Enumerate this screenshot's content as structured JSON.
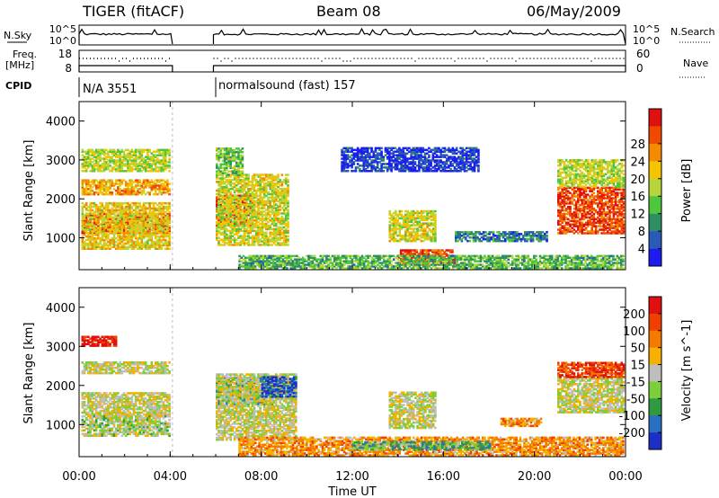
{
  "header": {
    "radar": "TIGER (fitACF)",
    "beam": "Beam 08",
    "date": "06/May/2009"
  },
  "status_panels": {
    "left_label_top": "N.Sky",
    "right_label_top": "N.Search",
    "left_label_freq_line1": "Freq.",
    "left_label_freq_line2": "[MHz]",
    "right_label_nave": "Nave",
    "cpid_label": "CPID",
    "noise_ticks_left": [
      "10^5",
      "10^0"
    ],
    "noise_ticks_right": [
      "10^5",
      "10^0"
    ],
    "freq_ticks_left": [
      "18",
      "8"
    ],
    "nave_ticks_right": [
      "60",
      "0"
    ],
    "cpid_segments": [
      {
        "label": "N/A 3551",
        "start_hour": 0,
        "end_hour": 4.1
      },
      {
        "label": "normalsound (fast) 157",
        "start_hour": 5.9,
        "end_hour": 24
      }
    ]
  },
  "chart_data": [
    {
      "type": "heatmap",
      "title": "",
      "xlabel": "",
      "ylabel": "Slant Range [km]",
      "xlim": [
        0,
        24
      ],
      "ylim": [
        180,
        4500
      ],
      "y_ticks": [
        1000,
        2000,
        3000,
        4000
      ],
      "data_gap_hours": [
        4.1,
        5.9
      ],
      "colorbar": {
        "label": "Power [dB]",
        "ticks": [
          "4",
          "8",
          "12",
          "16",
          "20",
          "24",
          "28"
        ],
        "colors": [
          "#1c1cf0",
          "#2a5ab8",
          "#2f8f64",
          "#4fc63c",
          "#b8d63a",
          "#f5c400",
          "#f58a00",
          "#f04a00",
          "#e01010"
        ]
      },
      "echo_regions": [
        {
          "x0": 0.1,
          "x1": 4.0,
          "y0": 1100,
          "y1": 1600,
          "level": 0.95
        },
        {
          "x0": 0.1,
          "x1": 4.0,
          "y0": 700,
          "y1": 1900,
          "level": 0.6
        },
        {
          "x0": 0.1,
          "x1": 4.0,
          "y0": 2100,
          "y1": 2500,
          "level": 0.7
        },
        {
          "x0": 0.1,
          "x1": 4.0,
          "y0": 2700,
          "y1": 3250,
          "level": 0.5
        },
        {
          "x0": 6.0,
          "x1": 7.6,
          "y0": 1300,
          "y1": 2100,
          "level": 0.95
        },
        {
          "x0": 6.0,
          "x1": 9.2,
          "y0": 800,
          "y1": 2600,
          "level": 0.55
        },
        {
          "x0": 6.0,
          "x1": 7.2,
          "y0": 2600,
          "y1": 3300,
          "level": 0.4
        },
        {
          "x0": 13.6,
          "x1": 15.6,
          "y0": 900,
          "y1": 1700,
          "level": 0.55
        },
        {
          "x0": 14.0,
          "x1": 16.5,
          "y0": 300,
          "y1": 700,
          "level": 0.9
        },
        {
          "x0": 7.0,
          "x1": 23.9,
          "y0": 200,
          "y1": 550,
          "level": 0.35
        },
        {
          "x0": 16.5,
          "x1": 20.5,
          "y0": 900,
          "y1": 1150,
          "level": 0.2
        },
        {
          "x0": 21.0,
          "x1": 23.9,
          "y0": 1100,
          "y1": 2300,
          "level": 0.9
        },
        {
          "x0": 21.0,
          "x1": 23.9,
          "y0": 2300,
          "y1": 3000,
          "level": 0.5
        },
        {
          "x0": 11.5,
          "x1": 17.5,
          "y0": 2700,
          "y1": 3300,
          "level": 0.05
        }
      ]
    },
    {
      "type": "heatmap",
      "title": "",
      "xlabel": "Time UT",
      "ylabel": "Slant Range [km]",
      "xlim": [
        0,
        24
      ],
      "ylim": [
        180,
        4500
      ],
      "x_ticks": [
        "00:00",
        "04:00",
        "08:00",
        "12:00",
        "16:00",
        "20:00",
        "00:00"
      ],
      "y_ticks": [
        1000,
        2000,
        3000,
        4000
      ],
      "data_gap_hours": [
        4.1,
        5.9
      ],
      "colorbar": {
        "label": "Velocity [m s^-1]",
        "ticks": [
          "200",
          "100",
          "50",
          "15",
          "-15",
          "-50",
          "-100",
          "-200"
        ],
        "colors": [
          "#1c30c8",
          "#2a70c0",
          "#2f9a40",
          "#7ccf3a",
          "#bebebe",
          "#f5b000",
          "#f57a00",
          "#f04000",
          "#e01010"
        ]
      },
      "echo_regions": [
        {
          "x0": 0.1,
          "x1": 4.0,
          "y0": 1200,
          "y1": 1800,
          "level": 0.5
        },
        {
          "x0": 0.1,
          "x1": 4.0,
          "y0": 700,
          "y1": 1200,
          "level": 0.45
        },
        {
          "x0": 0.1,
          "x1": 4.0,
          "y0": 2300,
          "y1": 2600,
          "level": 0.5
        },
        {
          "x0": 0.1,
          "x1": 1.6,
          "y0": 3000,
          "y1": 3250,
          "level": 1.0
        },
        {
          "x0": 6.0,
          "x1": 8.5,
          "y0": 1500,
          "y1": 2200,
          "level": 0.25
        },
        {
          "x0": 6.0,
          "x1": 9.5,
          "y0": 600,
          "y1": 2300,
          "level": 0.5
        },
        {
          "x0": 8.0,
          "x1": 9.5,
          "y0": 1700,
          "y1": 2200,
          "level": 0.05
        },
        {
          "x0": 13.6,
          "x1": 15.6,
          "y0": 900,
          "y1": 1800,
          "level": 0.5
        },
        {
          "x0": 18.5,
          "x1": 20.3,
          "y0": 950,
          "y1": 1150,
          "level": 0.72
        },
        {
          "x0": 7.0,
          "x1": 23.9,
          "y0": 200,
          "y1": 650,
          "level": 0.7
        },
        {
          "x0": 12.0,
          "x1": 18.0,
          "y0": 350,
          "y1": 550,
          "level": 0.3
        },
        {
          "x0": 21.0,
          "x1": 23.9,
          "y0": 1300,
          "y1": 2200,
          "level": 0.5
        },
        {
          "x0": 21.0,
          "x1": 23.9,
          "y0": 2200,
          "y1": 2600,
          "level": 0.9
        }
      ]
    }
  ]
}
